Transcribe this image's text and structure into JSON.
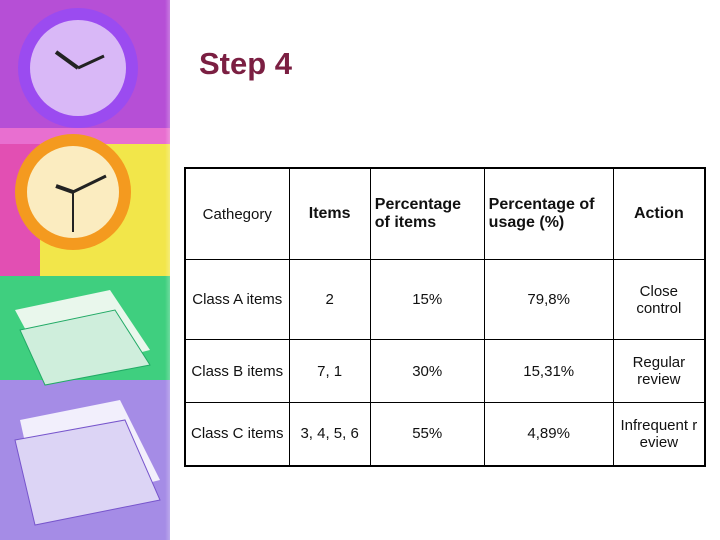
{
  "header": {
    "title": "Step 4"
  },
  "table": {
    "columns": [
      "Cathegory",
      "Items",
      "Percentage of items",
      "Percentage of usage (%)",
      "Action"
    ],
    "rows": [
      [
        "Class A items",
        "2",
        "15%",
        "79,8%",
        "Close control"
      ],
      [
        "Class B items",
        "7, 1",
        "30%",
        "15,31%",
        "Regular review"
      ],
      [
        "Class C items",
        "3, 4, 5, 6",
        "55%",
        "4,89%",
        "Infrequent review"
      ]
    ]
  }
}
